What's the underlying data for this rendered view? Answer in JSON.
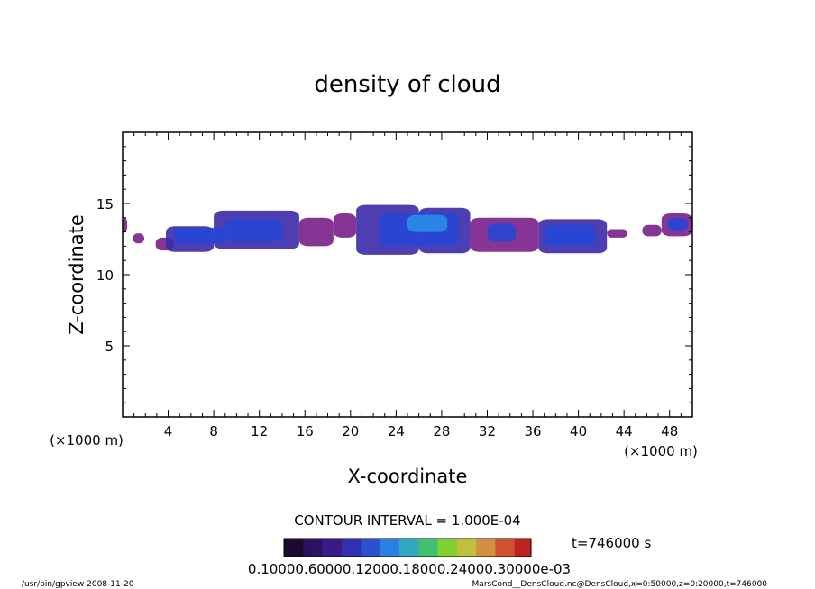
{
  "chart_data": {
    "type": "heatmap",
    "title": "density of cloud",
    "xlabel": "X-coordinate",
    "ylabel": "Z-coordinate",
    "x_unit": "(×1000 m)",
    "x_unit_right": "(×1000 m)",
    "xlim": [
      0,
      50
    ],
    "ylim": [
      0,
      20
    ],
    "x_ticks": [
      4,
      8,
      12,
      16,
      20,
      24,
      28,
      32,
      36,
      40,
      44,
      48
    ],
    "y_ticks": [
      5,
      10,
      15
    ],
    "contour_interval_text": "CONTOUR INTERVAL = 1.000E-04",
    "time_text": "t=746000  s",
    "colorbar_labels_text": "0.10000.60000.12000.18000.24000.30000e-03",
    "colorbar_colors": [
      "#1a0a2e",
      "#2a1260",
      "#3a1a8a",
      "#3030b0",
      "#2c50d0",
      "#2a80e0",
      "#30a8c0",
      "#40c070",
      "#80d030",
      "#c0c040",
      "#d09040",
      "#d05030",
      "#c02020"
    ],
    "cloud_colors": {
      "edge": "#7a1f8a",
      "mid": "#3a2aa8",
      "core": "#2346d8",
      "peak": "#2a90e8"
    },
    "cloud_bands": [
      {
        "x0": 0.0,
        "x1": 0.4,
        "z0": 13.0,
        "z1": 14.0,
        "level": 1
      },
      {
        "x0": 0.9,
        "x1": 1.9,
        "z0": 12.2,
        "z1": 12.9,
        "level": 1
      },
      {
        "x0": 2.9,
        "x1": 4.5,
        "z0": 11.7,
        "z1": 12.6,
        "level": 1
      },
      {
        "x0": 3.8,
        "x1": 8.0,
        "z0": 11.6,
        "z1": 13.4,
        "level": 2
      },
      {
        "x0": 8.0,
        "x1": 15.5,
        "z0": 11.8,
        "z1": 14.5,
        "level": 2
      },
      {
        "x0": 15.5,
        "x1": 18.5,
        "z0": 12.0,
        "z1": 14.0,
        "level": 1
      },
      {
        "x0": 18.5,
        "x1": 20.5,
        "z0": 12.6,
        "z1": 14.3,
        "level": 1
      },
      {
        "x0": 20.5,
        "x1": 26.0,
        "z0": 11.4,
        "z1": 14.9,
        "level": 2
      },
      {
        "x0": 26.0,
        "x1": 30.5,
        "z0": 11.5,
        "z1": 14.7,
        "level": 2
      },
      {
        "x0": 30.5,
        "x1": 36.5,
        "z0": 11.6,
        "z1": 14.0,
        "level": 1
      },
      {
        "x0": 36.5,
        "x1": 42.5,
        "z0": 11.5,
        "z1": 13.9,
        "level": 2
      },
      {
        "x0": 42.5,
        "x1": 44.3,
        "z0": 12.6,
        "z1": 13.2,
        "level": 1
      },
      {
        "x0": 45.6,
        "x1": 47.3,
        "z0": 12.7,
        "z1": 13.5,
        "level": 1
      },
      {
        "x0": 47.3,
        "x1": 50.0,
        "z0": 12.7,
        "z1": 14.3,
        "level": 1
      }
    ],
    "cloud_cores": [
      {
        "x0": 4.5,
        "x1": 9.0,
        "z0": 12.2,
        "z1": 13.3,
        "level": 3
      },
      {
        "x0": 9.0,
        "x1": 14.0,
        "z0": 12.3,
        "z1": 13.9,
        "level": 3
      },
      {
        "x0": 22.5,
        "x1": 29.5,
        "z0": 12.0,
        "z1": 14.3,
        "level": 3
      },
      {
        "x0": 25.0,
        "x1": 28.5,
        "z0": 13.0,
        "z1": 14.2,
        "level": 4
      },
      {
        "x0": 32.0,
        "x1": 34.5,
        "z0": 12.3,
        "z1": 13.6,
        "level": 3
      },
      {
        "x0": 37.0,
        "x1": 41.5,
        "z0": 12.0,
        "z1": 13.5,
        "level": 3
      },
      {
        "x0": 47.8,
        "x1": 49.6,
        "z0": 13.1,
        "z1": 14.0,
        "level": 3
      }
    ]
  },
  "footer": {
    "left": "/usr/bin/gpview   2008-11-20",
    "right": "MarsCond__DensCloud.nc@DensCloud,x=0:50000,z=0:20000,t=746000"
  }
}
